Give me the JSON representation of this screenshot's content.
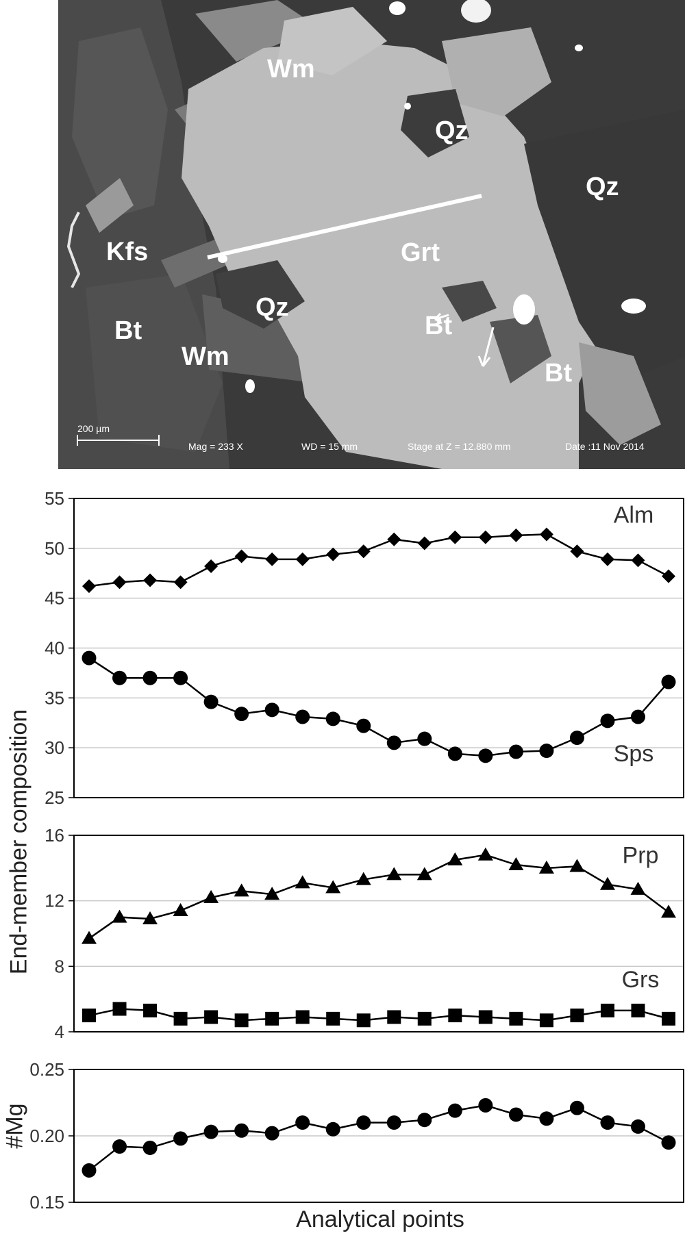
{
  "image": {
    "mineral_labels": [
      "Wm",
      "Qz",
      "Qz",
      "Kfs",
      "Grt",
      "Qz",
      "Bt",
      "Bt",
      "Wm",
      "Bt"
    ],
    "scale_bar": "200 µm",
    "mag": "Mag =   233 X",
    "wd": "WD =   15 mm",
    "stage": "Stage at Z = 12.880 mm",
    "date": "Date :11 Nov 2014"
  },
  "colors": {
    "mark": "#000000",
    "grid": "#c8c8c8",
    "axis": "#000000"
  },
  "chart_data": [
    {
      "type": "line",
      "ylim": [
        25,
        55
      ],
      "yticks": [
        25,
        30,
        35,
        40,
        45,
        50,
        55
      ],
      "grid": true,
      "series": [
        {
          "name": "Alm",
          "marker": "diamond",
          "values": [
            46.2,
            46.6,
            46.8,
            46.6,
            48.2,
            49.2,
            48.9,
            48.9,
            49.4,
            49.7,
            50.9,
            50.5,
            51.1,
            51.1,
            51.3,
            51.4,
            49.7,
            48.9,
            48.8,
            47.2
          ]
        },
        {
          "name": "Sps",
          "marker": "circle",
          "values": [
            39.0,
            37.0,
            37.0,
            37.0,
            34.6,
            33.4,
            33.8,
            33.1,
            32.9,
            32.2,
            30.5,
            30.9,
            29.4,
            29.2,
            29.6,
            29.7,
            31.0,
            32.7,
            33.1,
            36.6
          ]
        }
      ]
    },
    {
      "type": "line",
      "ylim": [
        4,
        16
      ],
      "yticks": [
        4,
        8,
        12,
        16
      ],
      "grid": true,
      "series": [
        {
          "name": "Prp",
          "marker": "triangle",
          "values": [
            9.7,
            11.0,
            10.9,
            11.4,
            12.2,
            12.6,
            12.4,
            13.1,
            12.8,
            13.3,
            13.6,
            13.6,
            14.5,
            14.8,
            14.2,
            14.0,
            14.1,
            13.0,
            12.7,
            11.3
          ]
        },
        {
          "name": "Grs",
          "marker": "square",
          "values": [
            5.0,
            5.4,
            5.3,
            4.8,
            4.9,
            4.7,
            4.8,
            4.9,
            4.8,
            4.7,
            4.9,
            4.8,
            5.0,
            4.9,
            4.8,
            4.7,
            5.0,
            5.3,
            5.3,
            4.8
          ]
        }
      ]
    },
    {
      "type": "line",
      "ylim": [
        0.15,
        0.25
      ],
      "yticks": [
        "0.15",
        "0.20",
        "0.25"
      ],
      "grid": true,
      "series": [
        {
          "name": "",
          "marker": "circle",
          "values": [
            0.174,
            0.192,
            0.191,
            0.198,
            0.203,
            0.204,
            0.202,
            0.21,
            0.205,
            0.21,
            0.21,
            0.212,
            0.219,
            0.223,
            0.216,
            0.213,
            0.221,
            0.21,
            0.207,
            0.195
          ]
        }
      ]
    }
  ],
  "labels": {
    "ylabel_top": "End-member composition",
    "ylabel_bottom": "#Mg",
    "xlabel": "Analytical points"
  }
}
